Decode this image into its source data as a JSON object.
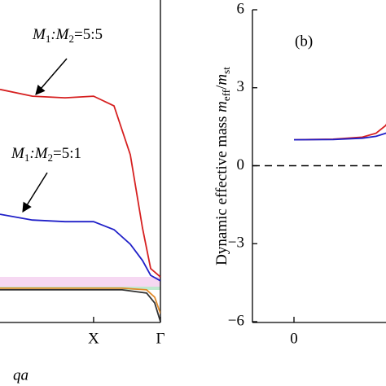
{
  "chart_data": [
    {
      "type": "line",
      "xlabel": "qa",
      "xlim": [
        -0.4,
        2
      ],
      "ylim": [
        0,
        100
      ],
      "xticks": [
        {
          "value": 1,
          "label": "X"
        },
        {
          "value": 2,
          "label": "Γ"
        }
      ],
      "x": [
        -0.4,
        0.085,
        0.573,
        1,
        1.305,
        1.549,
        1.732,
        1.854,
        2
      ],
      "annotations": [
        {
          "parts": [
            "M",
            "1",
            ":M",
            "2",
            "=5:5"
          ]
        },
        {
          "parts": [
            "M",
            "1",
            ":M",
            "2",
            "=5:1"
          ]
        }
      ],
      "series": [
        {
          "color": "#d62020",
          "values": [
            72.2,
            70.1,
            69.6,
            70.1,
            67.1,
            51.9,
            29.1,
            16.5,
            13.9
          ]
        },
        {
          "color": "#2020c8",
          "values": [
            33.4,
            31.6,
            31.1,
            31.1,
            28.6,
            24.1,
            19.0,
            14.4,
            12.7
          ]
        }
      ],
      "flat_x": [
        -0.4,
        1.427,
        1.793,
        1.915,
        2
      ],
      "flat_series": [
        {
          "color": "#e08a2a",
          "values": [
            10.4,
            10.4,
            9.9,
            7.6,
            2.5
          ]
        },
        {
          "color": "#333333",
          "values": [
            9.9,
            9.9,
            8.9,
            5.8,
            0
          ]
        }
      ]
    },
    {
      "type": "line",
      "panel_label": "(b)",
      "ylabel": {
        "text": "Dynamic effective mass ",
        "m1": "m",
        "s1": "eff",
        "sep": "/",
        "m2": "m",
        "s2": "st"
      },
      "xlim": [
        -0.1,
        0.8
      ],
      "ylim": [
        -6,
        6
      ],
      "xticks": [
        0
      ],
      "yticks": [
        {
          "value": -6,
          "label": "−6"
        },
        {
          "value": -3,
          "label": "−3"
        },
        0,
        3,
        6
      ],
      "x": [
        0,
        0.2,
        0.35,
        0.42,
        0.47,
        0.5
      ],
      "series": [
        {
          "color": "#d62020",
          "values": [
            1,
            1.02,
            1.1,
            1.25,
            1.55,
            2.0
          ]
        },
        {
          "color": "#2020c8",
          "values": [
            1,
            1.01,
            1.06,
            1.13,
            1.25,
            1.35
          ]
        }
      ],
      "hline": 0
    }
  ]
}
